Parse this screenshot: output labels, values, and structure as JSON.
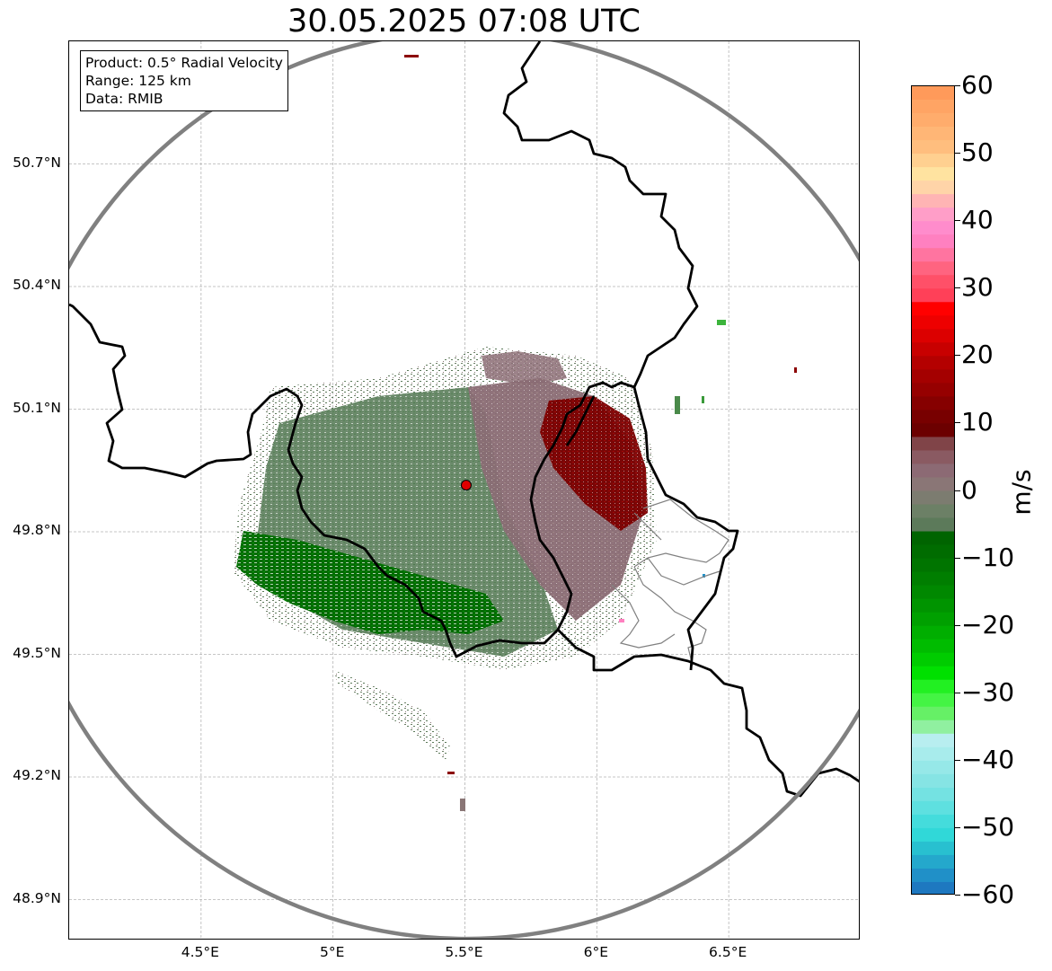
{
  "title": "30.05.2025 07:08 UTC",
  "info_box": {
    "line1": "Product: 0.5° Radial Velocity",
    "line2": "Range: 125 km",
    "line3": "Data: RMIB"
  },
  "map": {
    "lon_range": [
      4.0,
      7.0
    ],
    "lat_range": [
      48.8,
      51.0
    ],
    "lon_ticks": [
      {
        "value": 4.5,
        "label": "4.5°E"
      },
      {
        "value": 5.0,
        "label": "5°E"
      },
      {
        "value": 5.5,
        "label": "5.5°E"
      },
      {
        "value": 6.0,
        "label": "6°E"
      },
      {
        "value": 6.5,
        "label": "6.5°E"
      }
    ],
    "lat_ticks": [
      {
        "value": 50.7,
        "label": "50.7°N"
      },
      {
        "value": 50.4,
        "label": "50.4°N"
      },
      {
        "value": 50.1,
        "label": "50.1°N"
      },
      {
        "value": 49.8,
        "label": "49.8°N"
      },
      {
        "value": 49.5,
        "label": "49.5°N"
      },
      {
        "value": 49.2,
        "label": "49.2°N"
      },
      {
        "value": 48.9,
        "label": "48.9°N"
      }
    ],
    "gridlines": true,
    "radar_site": {
      "lon": 5.505,
      "lat": 49.914,
      "color": "#e00000"
    },
    "range_ring_color": "#808080",
    "border_color": "#000000"
  },
  "colorbar": {
    "label": "m/s",
    "min": -60,
    "max": 60,
    "ticks": [
      {
        "value": 60,
        "label": "60"
      },
      {
        "value": 50,
        "label": "50"
      },
      {
        "value": 40,
        "label": "40"
      },
      {
        "value": 30,
        "label": "30"
      },
      {
        "value": 20,
        "label": "20"
      },
      {
        "value": 10,
        "label": "10"
      },
      {
        "value": 0,
        "label": "0"
      },
      {
        "value": -10,
        "label": "−10"
      },
      {
        "value": -20,
        "label": "−20"
      },
      {
        "value": -30,
        "label": "−30"
      },
      {
        "value": -40,
        "label": "−40"
      },
      {
        "value": -50,
        "label": "−50"
      },
      {
        "value": -60,
        "label": "−60"
      }
    ],
    "bands": [
      {
        "from": 58,
        "to": 60,
        "color": "#ff9a5a"
      },
      {
        "from": 56,
        "to": 58,
        "color": "#ffa464"
      },
      {
        "from": 54,
        "to": 56,
        "color": "#ffac6c"
      },
      {
        "from": 52,
        "to": 54,
        "color": "#ffb676"
      },
      {
        "from": 50,
        "to": 52,
        "color": "#ffbe7e"
      },
      {
        "from": 48,
        "to": 50,
        "color": "#ffd090"
      },
      {
        "from": 46,
        "to": 48,
        "color": "#ffe3a0"
      },
      {
        "from": 44,
        "to": 46,
        "color": "#ffd4a8"
      },
      {
        "from": 42,
        "to": 44,
        "color": "#ffb4b4"
      },
      {
        "from": 40,
        "to": 42,
        "color": "#ff9ec8"
      },
      {
        "from": 38,
        "to": 40,
        "color": "#ff8ccc"
      },
      {
        "from": 36,
        "to": 38,
        "color": "#ff80c0"
      },
      {
        "from": 34,
        "to": 36,
        "color": "#ff74a0"
      },
      {
        "from": 32,
        "to": 34,
        "color": "#ff6480"
      },
      {
        "from": 30,
        "to": 32,
        "color": "#ff5068"
      },
      {
        "from": 28,
        "to": 30,
        "color": "#ff4058"
      },
      {
        "from": 26,
        "to": 28,
        "color": "#ff0000"
      },
      {
        "from": 24,
        "to": 26,
        "color": "#ee0000"
      },
      {
        "from": 22,
        "to": 24,
        "color": "#dc0000"
      },
      {
        "from": 20,
        "to": 22,
        "color": "#c80000"
      },
      {
        "from": 18,
        "to": 20,
        "color": "#b40000"
      },
      {
        "from": 16,
        "to": 18,
        "color": "#a40000"
      },
      {
        "from": 14,
        "to": 16,
        "color": "#960000"
      },
      {
        "from": 12,
        "to": 14,
        "color": "#860000"
      },
      {
        "from": 10,
        "to": 12,
        "color": "#780000"
      },
      {
        "from": 8,
        "to": 10,
        "color": "#6c0000"
      },
      {
        "from": 6,
        "to": 8,
        "color": "#804448"
      },
      {
        "from": 4,
        "to": 6,
        "color": "#8a5a62"
      },
      {
        "from": 2,
        "to": 4,
        "color": "#8c6a74"
      },
      {
        "from": 0,
        "to": 2,
        "color": "#8a7676"
      },
      {
        "from": -2,
        "to": 0,
        "color": "#7c7c70"
      },
      {
        "from": -4,
        "to": -2,
        "color": "#6c8066"
      },
      {
        "from": -6,
        "to": -4,
        "color": "#5c7a5a"
      },
      {
        "from": -8,
        "to": -6,
        "color": "#006400"
      },
      {
        "from": -10,
        "to": -8,
        "color": "#006c00"
      },
      {
        "from": -12,
        "to": -10,
        "color": "#007400"
      },
      {
        "from": -14,
        "to": -12,
        "color": "#007e00"
      },
      {
        "from": -16,
        "to": -14,
        "color": "#008800"
      },
      {
        "from": -18,
        "to": -16,
        "color": "#009400"
      },
      {
        "from": -20,
        "to": -18,
        "color": "#00a000"
      },
      {
        "from": -22,
        "to": -20,
        "color": "#00ae00"
      },
      {
        "from": -24,
        "to": -22,
        "color": "#00bc00"
      },
      {
        "from": -26,
        "to": -24,
        "color": "#00cc00"
      },
      {
        "from": -28,
        "to": -26,
        "color": "#00e000"
      },
      {
        "from": -30,
        "to": -28,
        "color": "#22f022"
      },
      {
        "from": -32,
        "to": -30,
        "color": "#44f444"
      },
      {
        "from": -34,
        "to": -32,
        "color": "#66f066"
      },
      {
        "from": -36,
        "to": -34,
        "color": "#90f0a0"
      },
      {
        "from": -38,
        "to": -36,
        "color": "#b8eef0"
      },
      {
        "from": -40,
        "to": -38,
        "color": "#a8ecec"
      },
      {
        "from": -42,
        "to": -40,
        "color": "#96e8e8"
      },
      {
        "from": -44,
        "to": -42,
        "color": "#86e4e4"
      },
      {
        "from": -46,
        "to": -44,
        "color": "#74e2e2"
      },
      {
        "from": -48,
        "to": -46,
        "color": "#5ee0e0"
      },
      {
        "from": -50,
        "to": -48,
        "color": "#44dcdc"
      },
      {
        "from": -52,
        "to": -50,
        "color": "#30d8d8"
      },
      {
        "from": -54,
        "to": -52,
        "color": "#28c0d0"
      },
      {
        "from": -56,
        "to": -54,
        "color": "#24a8cc"
      },
      {
        "from": -58,
        "to": -56,
        "color": "#2090c8"
      },
      {
        "from": -60,
        "to": -58,
        "color": "#1e78c0"
      }
    ]
  }
}
